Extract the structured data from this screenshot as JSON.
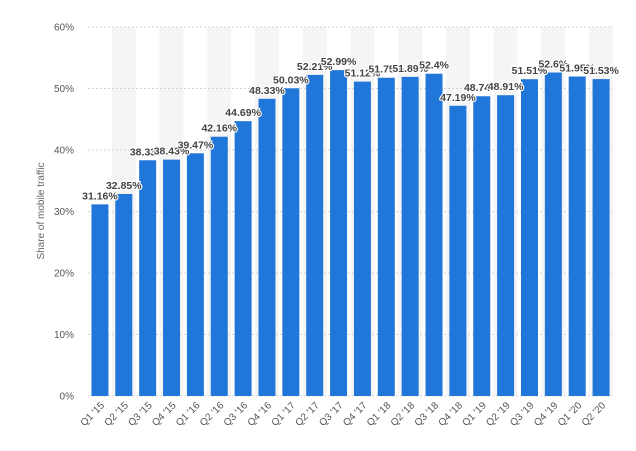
{
  "chart_data": {
    "type": "bar",
    "ylabel": "Share of mobile traffic",
    "ylim": [
      0,
      60
    ],
    "yticks": [
      0,
      10,
      20,
      30,
      40,
      50,
      60
    ],
    "ytick_labels": [
      "0%",
      "10%",
      "20%",
      "30%",
      "40%",
      "50%",
      "60%"
    ],
    "grid": true,
    "categories": [
      "Q1 '15",
      "Q2 '15",
      "Q3 '15",
      "Q4 '15",
      "Q1 '16",
      "Q2 '16",
      "Q3 '16",
      "Q4 '16",
      "Q1 '17",
      "Q2 '17",
      "Q3 '17",
      "Q4 '17",
      "Q1 '18",
      "Q2 '18",
      "Q3 '18",
      "Q4 '18",
      "Q1 '19",
      "Q2 '19",
      "Q3 '19",
      "Q4 '19",
      "Q1 '20",
      "Q2 '20"
    ],
    "values": [
      31.16,
      32.85,
      38.33,
      38.43,
      39.47,
      42.16,
      44.69,
      48.33,
      50.03,
      52.21,
      52.99,
      51.12,
      51.75,
      51.89,
      52.4,
      47.19,
      48.74,
      48.91,
      51.51,
      52.6,
      51.95,
      51.53
    ],
    "data_labels": [
      "31.16%",
      "32.85%",
      "38.33%",
      "38.43%",
      "39.47%",
      "42.16%",
      "44.69%",
      "48.33%",
      "50.03%",
      "52.21%",
      "52.99%",
      "51.12%",
      "51.75%",
      "51.89%",
      "52.4%",
      "47.19%",
      "48.74%",
      "48.91%",
      "51.51%",
      "52.6%",
      "51.95%",
      "51.53%"
    ],
    "colors": {
      "bar": "#2176d9",
      "column_band": "#f5f5f5"
    }
  }
}
